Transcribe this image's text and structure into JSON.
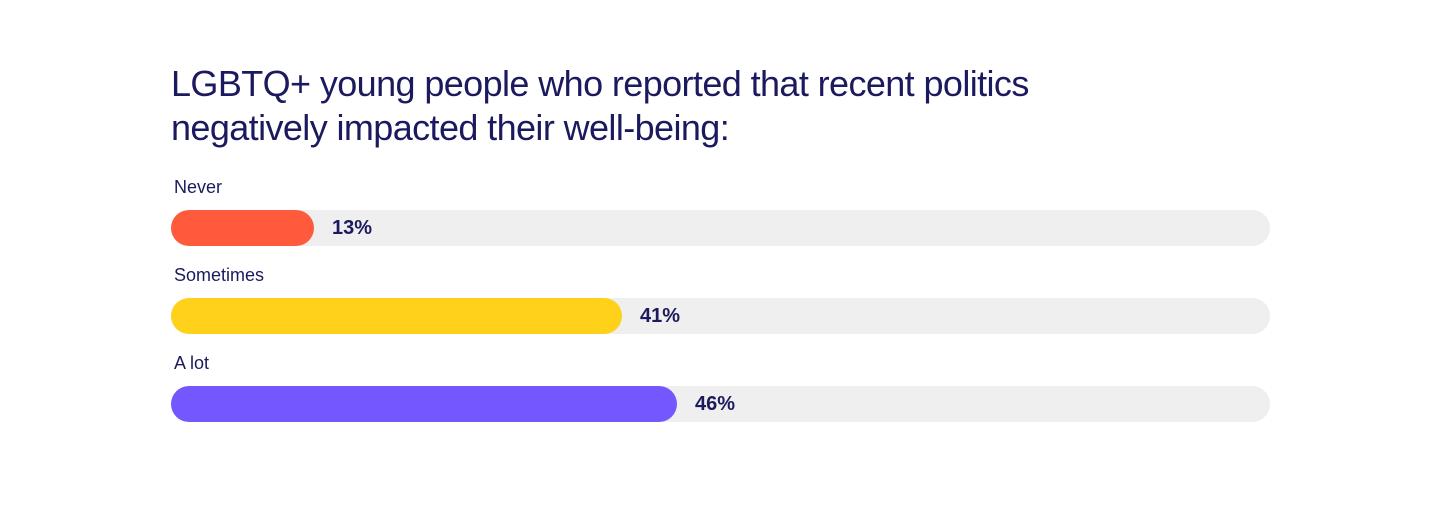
{
  "chart_data": {
    "type": "bar",
    "orientation": "horizontal",
    "title": "LGBTQ+ young people who reported that recent politics negatively impacted their well-being:",
    "categories": [
      "Never",
      "Sometimes",
      "A lot"
    ],
    "values": [
      13,
      41,
      46
    ],
    "value_labels": [
      "13%",
      "41%",
      "46%"
    ],
    "colors": [
      "#ff5a3c",
      "#ffd11a",
      "#7557ff"
    ],
    "track_color": "#efefef",
    "text_color": "#1c1a5e",
    "xlim": [
      0,
      100
    ],
    "grid": false
  }
}
